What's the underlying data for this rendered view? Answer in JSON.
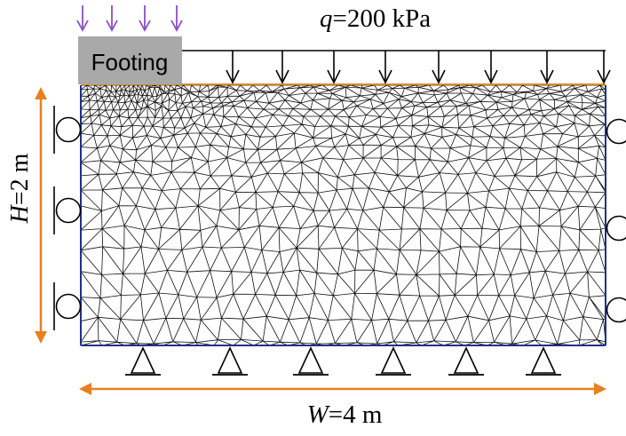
{
  "labels": {
    "load_var": "q",
    "load_value": "=200 kPa",
    "footing": "Footing",
    "height_var": "H",
    "height_value": "=2 m",
    "width_var": "W",
    "width_value": "=4 m"
  },
  "colors": {
    "mesh": "#111111",
    "boundary": "#1f2f8f",
    "surface": "#d98b1c",
    "dimension": "#e8801e",
    "footing_load": "#8a4fc9",
    "footing_fill": "#a9a9a9",
    "support": "#000000"
  },
  "icons": {
    "footing_load": "arrow-down-icon",
    "surcharge_load": "arrow-down-icon",
    "roller_support": "roller-circle-icon",
    "pin_support": "triangle-pin-icon",
    "dimension": "double-headed-arrow-icon"
  }
}
